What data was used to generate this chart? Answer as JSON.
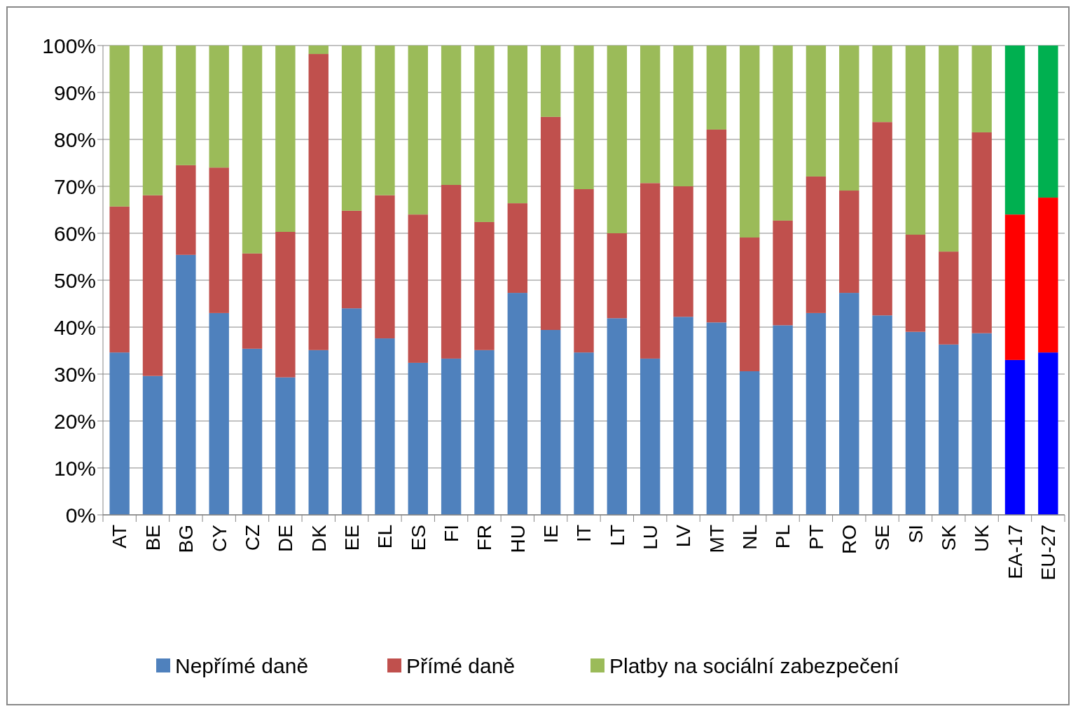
{
  "chart_data": {
    "type": "bar",
    "stacked": true,
    "categories": [
      "AT",
      "BE",
      "BG",
      "CY",
      "CZ",
      "DE",
      "DK",
      "EE",
      "EL",
      "ES",
      "FI",
      "FR",
      "HU",
      "IE",
      "IT",
      "LT",
      "LU",
      "LV",
      "MT",
      "NL",
      "PL",
      "PT",
      "RO",
      "SE",
      "SI",
      "SK",
      "UK",
      "EA-17",
      "EU-27"
    ],
    "series": [
      {
        "name": "Nepřímé daně",
        "color": "#4f81bd",
        "colors": [
          "#4f81bd",
          "#4f81bd",
          "#4f81bd",
          "#4f81bd",
          "#4f81bd",
          "#4f81bd",
          "#4f81bd",
          "#4f81bd",
          "#4f81bd",
          "#4f81bd",
          "#4f81bd",
          "#4f81bd",
          "#4f81bd",
          "#4f81bd",
          "#4f81bd",
          "#4f81bd",
          "#4f81bd",
          "#4f81bd",
          "#4f81bd",
          "#4f81bd",
          "#4f81bd",
          "#4f81bd",
          "#4f81bd",
          "#4f81bd",
          "#4f81bd",
          "#4f81bd",
          "#4f81bd",
          "#0000ff",
          "#0000ff"
        ],
        "values": [
          34.6,
          29.6,
          55.4,
          43.0,
          35.4,
          29.3,
          35.1,
          44.0,
          37.6,
          32.4,
          33.3,
          35.1,
          47.3,
          39.4,
          34.6,
          41.9,
          33.3,
          42.2,
          41.0,
          30.6,
          40.4,
          43.0,
          47.3,
          42.5,
          39.0,
          36.3,
          38.7,
          33.0,
          34.6
        ]
      },
      {
        "name": "Přímé daně",
        "color": "#c0504d",
        "colors": [
          "#c0504d",
          "#c0504d",
          "#c0504d",
          "#c0504d",
          "#c0504d",
          "#c0504d",
          "#c0504d",
          "#c0504d",
          "#c0504d",
          "#c0504d",
          "#c0504d",
          "#c0504d",
          "#c0504d",
          "#c0504d",
          "#c0504d",
          "#c0504d",
          "#c0504d",
          "#c0504d",
          "#c0504d",
          "#c0504d",
          "#c0504d",
          "#c0504d",
          "#c0504d",
          "#c0504d",
          "#c0504d",
          "#c0504d",
          "#c0504d",
          "#ff0000",
          "#ff0000"
        ],
        "values": [
          31.1,
          38.5,
          19.1,
          31.0,
          20.3,
          31.0,
          63.1,
          20.8,
          30.5,
          31.6,
          37.0,
          27.3,
          19.1,
          45.4,
          34.8,
          18.1,
          37.4,
          27.8,
          41.1,
          28.5,
          22.3,
          29.1,
          21.8,
          41.2,
          20.7,
          19.8,
          42.8,
          31.0,
          33.0
        ]
      },
      {
        "name": "Platby na sociální zabezpečení",
        "color": "#9bbb59",
        "colors": [
          "#9bbb59",
          "#9bbb59",
          "#9bbb59",
          "#9bbb59",
          "#9bbb59",
          "#9bbb59",
          "#9bbb59",
          "#9bbb59",
          "#9bbb59",
          "#9bbb59",
          "#9bbb59",
          "#9bbb59",
          "#9bbb59",
          "#9bbb59",
          "#9bbb59",
          "#9bbb59",
          "#9bbb59",
          "#9bbb59",
          "#9bbb59",
          "#9bbb59",
          "#9bbb59",
          "#9bbb59",
          "#9bbb59",
          "#9bbb59",
          "#9bbb59",
          "#9bbb59",
          "#9bbb59",
          "#00b050",
          "#00b050"
        ],
        "values": [
          34.3,
          31.9,
          25.5,
          26.0,
          44.3,
          39.7,
          1.8,
          35.2,
          31.9,
          36.0,
          29.7,
          37.6,
          33.6,
          15.2,
          30.6,
          40.0,
          29.3,
          30.0,
          17.9,
          40.9,
          37.3,
          27.9,
          30.9,
          16.3,
          40.3,
          43.9,
          18.5,
          36.0,
          32.4
        ]
      }
    ],
    "ylim": [
      0,
      100
    ],
    "yticks": [
      {
        "value": 0,
        "label": "0%"
      },
      {
        "value": 10,
        "label": "10%"
      },
      {
        "value": 20,
        "label": "20%"
      },
      {
        "value": 30,
        "label": "30%"
      },
      {
        "value": 40,
        "label": "40%"
      },
      {
        "value": 50,
        "label": "50%"
      },
      {
        "value": 60,
        "label": "60%"
      },
      {
        "value": 70,
        "label": "70%"
      },
      {
        "value": 80,
        "label": "80%"
      },
      {
        "value": 90,
        "label": "90%"
      },
      {
        "value": 100,
        "label": "100%"
      }
    ],
    "grid": "y",
    "legend": "bottom"
  }
}
